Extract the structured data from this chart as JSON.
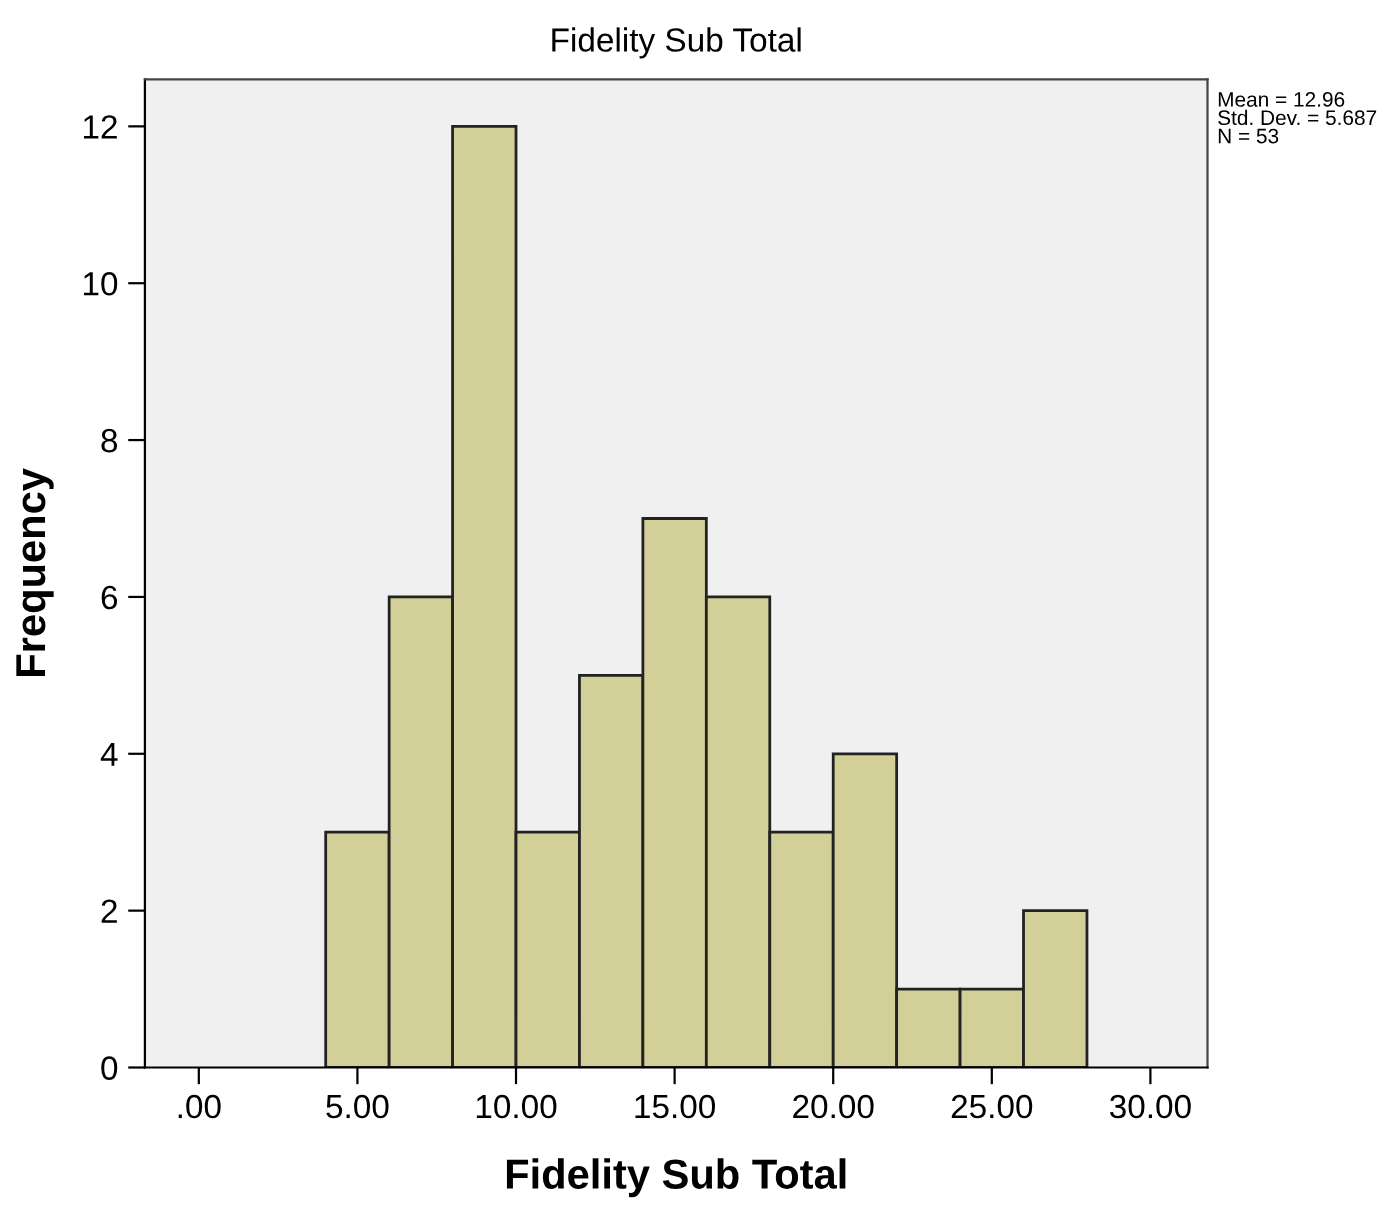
{
  "chart_data": {
    "type": "histogram",
    "title": "Fidelity Sub Total",
    "xlabel": "Fidelity Sub Total",
    "ylabel": "Frequency",
    "bins": [
      4,
      6,
      8,
      10,
      12,
      14,
      16,
      18,
      20,
      22,
      24,
      26,
      28
    ],
    "values": [
      3,
      6,
      12,
      3,
      5,
      7,
      6,
      3,
      4,
      1,
      1,
      2
    ],
    "color": "#d3cf98",
    "xlim": [
      -1.7,
      31.8
    ],
    "ylim": [
      0,
      12.6
    ],
    "xticks": [
      {
        "value": 0,
        "label": ".00"
      },
      {
        "value": 5,
        "label": "5.00"
      },
      {
        "value": 10,
        "label": "10.00"
      },
      {
        "value": 15,
        "label": "15.00"
      },
      {
        "value": 20,
        "label": "20.00"
      },
      {
        "value": 25,
        "label": "25.00"
      },
      {
        "value": 30,
        "label": "30.00"
      }
    ],
    "yticks": [
      0,
      2,
      4,
      6,
      8,
      10,
      12
    ],
    "annotations": [
      "Mean = 12.96",
      "Std. Dev. = 5.687",
      "N = 53"
    ],
    "grid": false,
    "legend": false
  }
}
